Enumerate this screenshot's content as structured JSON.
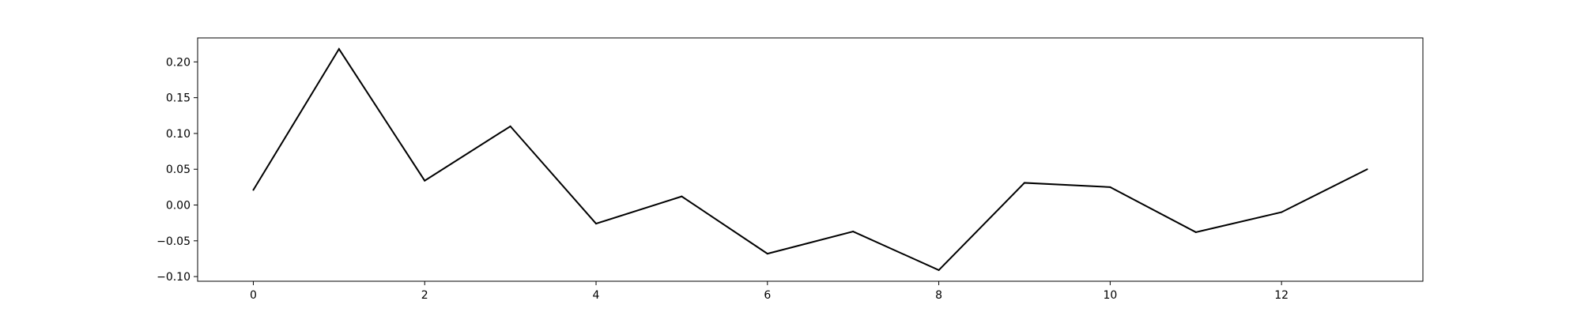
{
  "chart_data": {
    "type": "line",
    "title": "",
    "xlabel": "",
    "ylabel": "",
    "x": [
      0,
      1,
      2,
      3,
      4,
      5,
      6,
      7,
      8,
      9,
      10,
      11,
      12,
      13
    ],
    "series": [
      {
        "values": [
          0.021,
          0.218,
          0.034,
          0.11,
          -0.026,
          0.012,
          -0.068,
          -0.037,
          -0.091,
          0.031,
          0.025,
          -0.038,
          -0.01,
          0.05
        ],
        "color": "#000000"
      }
    ],
    "xlim": [
      -0.65,
      13.65
    ],
    "ylim": [
      -0.1065,
      0.2335
    ],
    "x_ticks": [
      0,
      2,
      4,
      6,
      8,
      10,
      12
    ],
    "x_tick_labels": [
      "0",
      "2",
      "4",
      "6",
      "8",
      "10",
      "12"
    ],
    "y_ticks": [
      -0.1,
      -0.05,
      0.0,
      0.05,
      0.1,
      0.15,
      0.2
    ],
    "y_tick_labels": [
      "−0.10",
      "−0.05",
      "0.00",
      "0.05",
      "0.10",
      "0.15",
      "0.20"
    ],
    "grid": false,
    "legend": "none"
  }
}
